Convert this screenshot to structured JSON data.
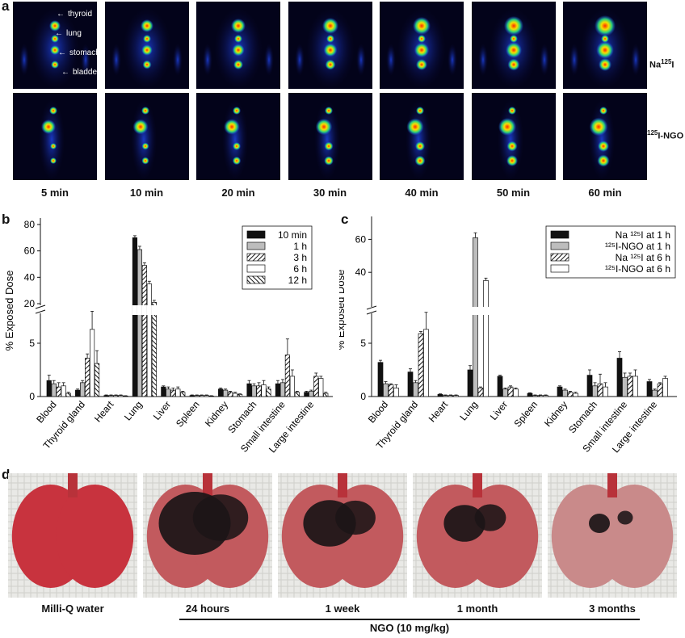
{
  "panel_a": {
    "letter": "a",
    "time_labels": [
      "5 min",
      "10 min",
      "20 min",
      "30 min",
      "40 min",
      "50 min",
      "60 min"
    ],
    "row_labels": [
      {
        "base": "Na",
        "sup": "125",
        "tail": "I"
      },
      {
        "pre": "",
        "sup": "125",
        "tail": "I-NGO"
      }
    ],
    "organ_annotations": [
      "thyroid",
      "lung",
      "stomach",
      "bladder"
    ],
    "colors": {
      "background": "#03031a",
      "hot": "#ff2a00",
      "warm": "#f5e000",
      "mid": "#2ad17a",
      "cool": "#1a4fff"
    }
  },
  "chart_data": [
    {
      "panel": "b",
      "type": "bar",
      "ylabel": "% Exposed Dose",
      "y_ticks_lower": [
        0,
        5
      ],
      "y_ticks_upper": [
        20,
        40,
        60,
        80
      ],
      "broken_axis": {
        "lower": [
          0,
          7.5
        ],
        "upper": [
          20,
          80
        ]
      },
      "categories": [
        "Blood",
        "Thyroid gland",
        "Heart",
        "Lung",
        "Liver",
        "Spleen",
        "Kidney",
        "Stomach",
        "Small intestine",
        "Large intestine"
      ],
      "series": [
        {
          "name": "10 min",
          "fill": "black",
          "values": [
            1.5,
            0.6,
            0.1,
            70,
            0.9,
            0.1,
            0.7,
            1.2,
            1.2,
            0.4
          ],
          "errors": [
            0.5,
            0.1,
            0.05,
            1.5,
            0.1,
            0.05,
            0.1,
            0.3,
            0.3,
            0.1
          ]
        },
        {
          "name": "1  h",
          "fill": "gray",
          "values": [
            1.2,
            1.3,
            0.1,
            61,
            0.7,
            0.1,
            0.6,
            1.0,
            1.3,
            0.5
          ],
          "errors": [
            0.3,
            0.2,
            0.05,
            2.5,
            0.2,
            0.05,
            0.1,
            0.2,
            0.3,
            0.1
          ]
        },
        {
          "name": "3  h",
          "fill": "hatch",
          "values": [
            0.9,
            3.6,
            0.1,
            49,
            0.6,
            0.1,
            0.4,
            1.0,
            3.9,
            1.9
          ],
          "errors": [
            0.4,
            0.4,
            0.05,
            2,
            0.2,
            0.05,
            0.1,
            0.3,
            1.5,
            0.3
          ]
        },
        {
          "name": "6  h",
          "fill": "white",
          "values": [
            1.0,
            6.3,
            0.1,
            35,
            0.7,
            0.1,
            0.3,
            1.1,
            1.9,
            1.7
          ],
          "errors": [
            0.3,
            1.7,
            0.05,
            2,
            0.2,
            0.05,
            0.1,
            0.4,
            0.6,
            0.2
          ]
        },
        {
          "name": "12 h",
          "fill": "hatch2",
          "values": [
            0.3,
            3.1,
            0.05,
            21,
            0.4,
            0.05,
            0.2,
            0.7,
            0.4,
            0.3
          ],
          "errors": [
            0.1,
            1.2,
            0.03,
            1.5,
            0.1,
            0.03,
            0.05,
            0.2,
            0.1,
            0.1
          ]
        }
      ]
    },
    {
      "panel": "c",
      "type": "bar",
      "ylabel": "% Exposed Dose",
      "y_ticks_lower": [
        0,
        5
      ],
      "y_ticks_upper": [
        40,
        60
      ],
      "broken_axis": {
        "lower": [
          0,
          7.5
        ],
        "upper": [
          20,
          70
        ]
      },
      "categories": [
        "Blood",
        "Thyroid gland",
        "Heart",
        "Lung",
        "Liver",
        "Spleen",
        "Kidney",
        "Stomach",
        "Small intestine",
        "Large intestine"
      ],
      "series": [
        {
          "name": "Na ¹²⁵I at 1 h",
          "fill": "black",
          "values": [
            3.2,
            2.3,
            0.2,
            2.5,
            1.9,
            0.3,
            0.9,
            2.0,
            3.6,
            1.4
          ],
          "errors": [
            0.2,
            0.3,
            0.05,
            0.4,
            0.1,
            0.05,
            0.1,
            0.5,
            0.6,
            0.2
          ]
        },
        {
          "name": "¹²⁵I-NGO at 1 h",
          "fill": "gray",
          "values": [
            1.2,
            1.3,
            0.1,
            61,
            0.7,
            0.1,
            0.6,
            1.0,
            1.8,
            0.6
          ],
          "errors": [
            0.2,
            0.2,
            0.05,
            3,
            0.1,
            0.05,
            0.1,
            0.3,
            0.4,
            0.1
          ]
        },
        {
          "name": "Na ¹²⁵I at 6 h",
          "fill": "hatch",
          "values": [
            1.1,
            5.9,
            0.1,
            0.8,
            0.9,
            0.1,
            0.4,
            1.2,
            1.9,
            1.2
          ],
          "errors": [
            0.1,
            0.2,
            0.05,
            0.1,
            0.1,
            0.05,
            0.1,
            0.9,
            0.3,
            0.1
          ]
        },
        {
          "name": "¹²⁵I-NGO at 6 h",
          "fill": "white",
          "values": [
            0.8,
            6.3,
            0.1,
            35,
            0.7,
            0.1,
            0.3,
            0.9,
            1.9,
            1.7
          ],
          "errors": [
            0.3,
            1.6,
            0.05,
            1.5,
            0.1,
            0.05,
            0.1,
            0.4,
            0.6,
            0.2
          ]
        }
      ]
    }
  ],
  "panel_d": {
    "letter": "d",
    "captions": [
      "Milli-Q water",
      "24 hours",
      "1 week",
      "1 month",
      "3 months"
    ],
    "group_label": "NGO (10 mg/kg)",
    "blackness": [
      0,
      0.55,
      0.38,
      0.28,
      0.1
    ]
  },
  "panel_letters": {
    "b": "b",
    "c": "c"
  }
}
